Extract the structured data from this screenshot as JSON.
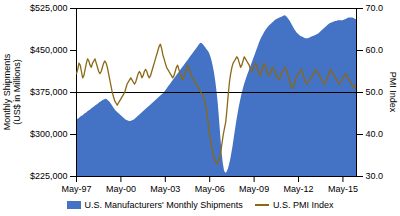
{
  "chart_data": {
    "type": "area",
    "ylabel": "Monthly Shipments\n(US$ in Millions)",
    "y2label": "PMI Index",
    "categories": [
      "May-97",
      null,
      null,
      null,
      null,
      null,
      null,
      null,
      null,
      null,
      null,
      null,
      null,
      null,
      null,
      null,
      null,
      null,
      null,
      null,
      null,
      null,
      null,
      null,
      null,
      null,
      null,
      null,
      null,
      null,
      null,
      null,
      null,
      null,
      null,
      null,
      "May-00",
      null,
      null,
      null,
      null,
      null,
      null,
      null,
      null,
      null,
      null,
      null,
      null,
      null,
      null,
      null,
      null,
      null,
      null,
      null,
      null,
      null,
      null,
      null,
      null,
      null,
      null,
      null,
      null,
      null,
      null,
      null,
      null,
      null,
      null,
      null,
      "May-03",
      null,
      null,
      null,
      null,
      null,
      null,
      null,
      null,
      null,
      null,
      null,
      null,
      null,
      null,
      null,
      null,
      null,
      null,
      null,
      null,
      null,
      null,
      null,
      null,
      null,
      null,
      null,
      null,
      null,
      null,
      null,
      null,
      null,
      null,
      null,
      "May-06",
      null,
      null,
      null,
      null,
      null,
      null,
      null,
      null,
      null,
      null,
      null,
      null,
      null,
      null,
      null,
      null,
      null,
      null,
      null,
      null,
      null,
      null,
      null,
      null,
      null,
      null,
      null,
      null,
      null,
      null,
      null,
      null,
      null,
      null,
      null,
      "May-09",
      null,
      null,
      null,
      null,
      null,
      null,
      null,
      null,
      null,
      null,
      null,
      null,
      null,
      null,
      null,
      null,
      null,
      null,
      null,
      null,
      null,
      null,
      null,
      null,
      null,
      null,
      null,
      null,
      null,
      null,
      null,
      null,
      null,
      null,
      null,
      "May-12",
      null,
      null,
      null,
      null,
      null,
      null,
      null,
      null,
      null,
      null,
      null,
      null,
      null,
      null,
      null,
      null,
      null,
      null,
      null,
      null,
      null,
      null,
      null,
      null,
      null,
      null,
      null,
      null,
      null,
      null,
      null,
      null,
      null,
      null,
      null,
      "May-15",
      null,
      null,
      null,
      null,
      null,
      null,
      null,
      null,
      null,
      null,
      null
    ],
    "series": [
      {
        "name": "U.S. Manufacturers' Monthly Shipments",
        "type": "area",
        "color": "#4472C4",
        "values": [
          325000,
          327000,
          328000,
          330000,
          332000,
          333000,
          335000,
          337000,
          338000,
          340000,
          342000,
          343000,
          345000,
          347000,
          348000,
          350000,
          352000,
          353000,
          355000,
          357000,
          358000,
          360000,
          361000,
          362000,
          363000,
          362000,
          360000,
          358000,
          355000,
          352000,
          348000,
          345000,
          342000,
          340000,
          338000,
          336000,
          334000,
          332000,
          330000,
          328000,
          326000,
          325000,
          324000,
          323000,
          323000,
          324000,
          325000,
          326000,
          328000,
          330000,
          332000,
          334000,
          336000,
          338000,
          340000,
          342000,
          344000,
          346000,
          348000,
          350000,
          352000,
          354000,
          356000,
          358000,
          360000,
          362000,
          364000,
          366000,
          368000,
          370000,
          372000,
          374000,
          377000,
          380000,
          383000,
          386000,
          389000,
          392000,
          395000,
          398000,
          401000,
          404000,
          407000,
          410000,
          413000,
          416000,
          419000,
          422000,
          425000,
          428000,
          431000,
          434000,
          437000,
          440000,
          443000,
          446000,
          449000,
          452000,
          455000,
          458000,
          461000,
          463000,
          462000,
          460000,
          457000,
          454000,
          451000,
          448000,
          444000,
          438000,
          430000,
          420000,
          408000,
          393000,
          375000,
          353000,
          325000,
          295000,
          268000,
          248000,
          235000,
          231000,
          232000,
          237000,
          245000,
          255000,
          267000,
          280000,
          295000,
          310000,
          324000,
          337000,
          349000,
          360000,
          370000,
          379000,
          387000,
          394000,
          401000,
          407000,
          413000,
          419000,
          425000,
          431000,
          437000,
          443000,
          449000,
          455000,
          461000,
          467000,
          472000,
          476000,
          480000,
          484000,
          487000,
          490000,
          493000,
          495000,
          497000,
          499000,
          501000,
          503000,
          505000,
          506000,
          507000,
          508000,
          509000,
          510000,
          511000,
          512000,
          511000,
          509000,
          506000,
          503000,
          499000,
          495000,
          491000,
          487000,
          484000,
          481000,
          479000,
          477000,
          475000,
          474000,
          473000,
          472000,
          471000,
          471000,
          471000,
          472000,
          473000,
          474000,
          475000,
          476000,
          477000,
          478000,
          479000,
          481000,
          483000,
          485000,
          487000,
          489000,
          491000,
          493000,
          495000,
          497000,
          498000,
          499000,
          500000,
          501000,
          502000,
          502000,
          503000,
          503000,
          503000,
          503000,
          503000,
          504000,
          505000,
          506000,
          507000,
          508000,
          508000,
          508000,
          508000,
          507000,
          506000,
          505000
        ]
      },
      {
        "name": "U.S. PMI Index",
        "type": "line",
        "color": "#8B6914",
        "axis": "y2",
        "values": [
          54.5,
          55.5,
          57.0,
          56.5,
          55.0,
          53.5,
          54.0,
          55.5,
          57.0,
          58.0,
          57.5,
          56.5,
          56.0,
          57.0,
          57.5,
          58.0,
          57.0,
          56.0,
          55.0,
          54.5,
          55.0,
          56.0,
          57.0,
          57.5,
          57.0,
          56.0,
          54.5,
          53.0,
          51.5,
          50.0,
          49.0,
          48.0,
          47.5,
          47.0,
          47.5,
          48.0,
          48.5,
          49.0,
          49.5,
          50.0,
          51.0,
          52.0,
          52.5,
          53.0,
          53.5,
          53.0,
          52.5,
          52.0,
          52.5,
          53.5,
          54.5,
          55.0,
          54.5,
          53.5,
          54.0,
          55.0,
          55.5,
          55.0,
          54.0,
          53.5,
          54.0,
          55.0,
          56.0,
          57.0,
          58.0,
          59.0,
          60.0,
          61.0,
          61.5,
          60.5,
          59.0,
          58.0,
          57.0,
          56.0,
          55.5,
          55.0,
          54.5,
          54.0,
          53.5,
          54.0,
          55.0,
          56.0,
          56.5,
          55.5,
          54.5,
          53.5,
          53.0,
          53.5,
          54.5,
          55.5,
          56.5,
          56.0,
          55.0,
          54.0,
          53.5,
          53.0,
          52.5,
          52.0,
          51.5,
          51.0,
          50.5,
          50.0,
          49.5,
          49.0,
          48.0,
          46.5,
          44.5,
          42.0,
          40.0,
          38.0,
          36.5,
          35.0,
          34.0,
          33.5,
          33.0,
          33.5,
          34.5,
          36.0,
          38.0,
          40.0,
          41.5,
          43.0,
          46.0,
          49.5,
          52.5,
          54.5,
          56.0,
          57.0,
          57.5,
          58.0,
          58.5,
          58.0,
          57.0,
          56.0,
          56.5,
          57.5,
          58.5,
          58.0,
          57.5,
          57.0,
          56.5,
          55.5,
          55.0,
          55.5,
          56.5,
          57.0,
          56.5,
          55.5,
          54.5,
          54.0,
          55.0,
          56.0,
          57.0,
          56.5,
          55.5,
          54.5,
          54.0,
          54.5,
          55.5,
          56.0,
          55.5,
          55.0,
          54.0,
          53.5,
          53.0,
          53.5,
          54.5,
          55.0,
          55.5,
          56.0,
          55.5,
          54.5,
          53.5,
          52.5,
          51.5,
          51.0,
          51.5,
          52.5,
          53.5,
          54.0,
          54.5,
          55.0,
          55.5,
          55.0,
          54.0,
          53.0,
          52.5,
          52.0,
          52.5,
          53.0,
          53.5,
          54.0,
          54.5,
          55.0,
          55.5,
          55.0,
          54.5,
          54.0,
          53.5,
          53.0,
          52.5,
          52.0,
          52.5,
          53.0,
          54.0,
          55.0,
          55.5,
          55.0,
          54.5,
          54.0,
          53.5,
          53.0,
          52.5,
          52.0,
          52.5,
          53.0,
          53.5,
          54.0,
          54.5,
          54.0,
          53.5,
          53.0,
          52.5,
          52.0,
          51.5,
          51.0,
          51.5,
          52.0
        ]
      }
    ],
    "ylim": [
      225000,
      525000
    ],
    "yticks": [
      {
        "value": 225000,
        "label": "$225,000"
      },
      {
        "value": 300000,
        "label": "$300,000"
      },
      {
        "value": 375000,
        "label": "$375,000"
      },
      {
        "value": 450000,
        "label": "$450,000"
      },
      {
        "value": 525000,
        "label": "$525,000"
      }
    ],
    "y2lim": [
      30,
      70
    ],
    "y2ticks": [
      {
        "value": 30,
        "label": "30.0"
      },
      {
        "value": 40,
        "label": "40.0"
      },
      {
        "value": 50,
        "label": "50.0"
      },
      {
        "value": 60,
        "label": "60.0"
      },
      {
        "value": 70,
        "label": "70.0"
      }
    ],
    "reference_line": {
      "y": 375000,
      "color": "#000000"
    },
    "grid": false,
    "legend": "bottom"
  }
}
